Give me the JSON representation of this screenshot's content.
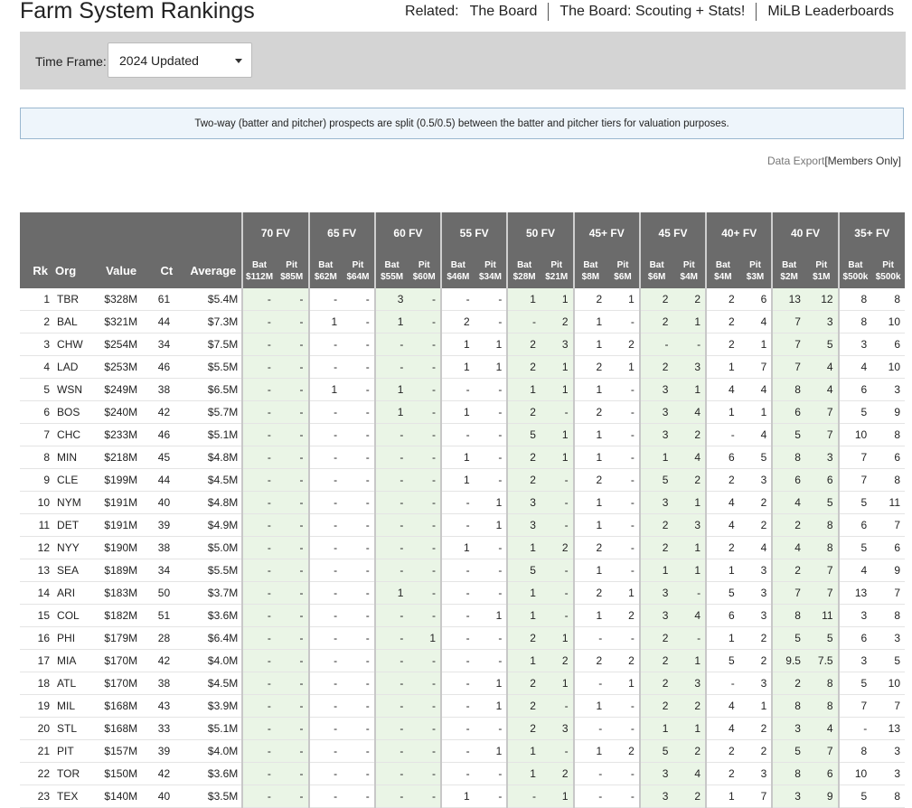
{
  "header": {
    "title": "Farm System Rankings",
    "related_label": "Related:",
    "links": [
      "The Board",
      "The Board: Scouting + Stats!",
      "MiLB Leaderboards"
    ]
  },
  "timeframe": {
    "label": "Time Frame:",
    "selected": "2024 Updated"
  },
  "notice": "Two-way (batter and pitcher) prospects are split (0.5/0.5) between the batter and pitcher tiers for valuation purposes.",
  "export": {
    "prefix": "Data Export",
    "link": "[Members Only]"
  },
  "colors": {
    "header_bg": "#6b6b6b",
    "green_band": "#eaf5e6",
    "bar_bg": "#d4d4d4",
    "notice_bg": "#eef5fb"
  },
  "table": {
    "headers": {
      "rk": "Rk",
      "org": "Org",
      "value": "Value",
      "ct": "Ct",
      "avg": "Average"
    },
    "tiers": [
      {
        "name": "70 FV",
        "bat": "$112M",
        "pit": "$85M",
        "green": true
      },
      {
        "name": "65 FV",
        "bat": "$62M",
        "pit": "$64M",
        "green": false
      },
      {
        "name": "60 FV",
        "bat": "$55M",
        "pit": "$60M",
        "green": true
      },
      {
        "name": "55 FV",
        "bat": "$46M",
        "pit": "$34M",
        "green": false
      },
      {
        "name": "50 FV",
        "bat": "$28M",
        "pit": "$21M",
        "green": true
      },
      {
        "name": "45+ FV",
        "bat": "$8M",
        "pit": "$6M",
        "green": false
      },
      {
        "name": "45 FV",
        "bat": "$6M",
        "pit": "$4M",
        "green": true
      },
      {
        "name": "40+ FV",
        "bat": "$4M",
        "pit": "$3M",
        "green": false
      },
      {
        "name": "40 FV",
        "bat": "$2M",
        "pit": "$1M",
        "green": true
      },
      {
        "name": "35+ FV",
        "bat": "$500k",
        "pit": "$500k",
        "green": false
      }
    ],
    "bat_label": "Bat",
    "pit_label": "Pit",
    "rows": [
      {
        "rk": "1",
        "org": "TBR",
        "value": "$328M",
        "ct": "61",
        "avg": "$5.4M",
        "tiers": [
          "-",
          "-",
          "-",
          "-",
          "3",
          "-",
          "-",
          "-",
          "1",
          "1",
          "2",
          "1",
          "2",
          "2",
          "2",
          "6",
          "13",
          "12",
          "8",
          "8"
        ]
      },
      {
        "rk": "2",
        "org": "BAL",
        "value": "$321M",
        "ct": "44",
        "avg": "$7.3M",
        "tiers": [
          "-",
          "-",
          "1",
          "-",
          "1",
          "-",
          "2",
          "-",
          "-",
          "2",
          "1",
          "-",
          "2",
          "1",
          "2",
          "4",
          "7",
          "3",
          "8",
          "10"
        ]
      },
      {
        "rk": "3",
        "org": "CHW",
        "value": "$254M",
        "ct": "34",
        "avg": "$7.5M",
        "tiers": [
          "-",
          "-",
          "-",
          "-",
          "-",
          "-",
          "1",
          "1",
          "2",
          "3",
          "1",
          "2",
          "-",
          "-",
          "2",
          "1",
          "7",
          "5",
          "3",
          "6"
        ]
      },
      {
        "rk": "4",
        "org": "LAD",
        "value": "$253M",
        "ct": "46",
        "avg": "$5.5M",
        "tiers": [
          "-",
          "-",
          "-",
          "-",
          "-",
          "-",
          "1",
          "1",
          "2",
          "1",
          "2",
          "1",
          "2",
          "3",
          "1",
          "7",
          "7",
          "4",
          "4",
          "10"
        ]
      },
      {
        "rk": "5",
        "org": "WSN",
        "value": "$249M",
        "ct": "38",
        "avg": "$6.5M",
        "tiers": [
          "-",
          "-",
          "1",
          "-",
          "1",
          "-",
          "-",
          "-",
          "1",
          "1",
          "1",
          "-",
          "3",
          "1",
          "4",
          "4",
          "8",
          "4",
          "6",
          "3"
        ]
      },
      {
        "rk": "6",
        "org": "BOS",
        "value": "$240M",
        "ct": "42",
        "avg": "$5.7M",
        "tiers": [
          "-",
          "-",
          "-",
          "-",
          "1",
          "-",
          "1",
          "-",
          "2",
          "-",
          "2",
          "-",
          "3",
          "4",
          "1",
          "1",
          "6",
          "7",
          "5",
          "9"
        ]
      },
      {
        "rk": "7",
        "org": "CHC",
        "value": "$233M",
        "ct": "46",
        "avg": "$5.1M",
        "tiers": [
          "-",
          "-",
          "-",
          "-",
          "-",
          "-",
          "-",
          "-",
          "5",
          "1",
          "1",
          "-",
          "3",
          "2",
          "-",
          "4",
          "5",
          "7",
          "10",
          "8"
        ]
      },
      {
        "rk": "8",
        "org": "MIN",
        "value": "$218M",
        "ct": "45",
        "avg": "$4.8M",
        "tiers": [
          "-",
          "-",
          "-",
          "-",
          "-",
          "-",
          "1",
          "-",
          "2",
          "1",
          "1",
          "-",
          "1",
          "4",
          "6",
          "5",
          "8",
          "3",
          "7",
          "6"
        ]
      },
      {
        "rk": "9",
        "org": "CLE",
        "value": "$199M",
        "ct": "44",
        "avg": "$4.5M",
        "tiers": [
          "-",
          "-",
          "-",
          "-",
          "-",
          "-",
          "1",
          "-",
          "2",
          "-",
          "2",
          "-",
          "5",
          "2",
          "2",
          "3",
          "6",
          "6",
          "7",
          "8"
        ]
      },
      {
        "rk": "10",
        "org": "NYM",
        "value": "$191M",
        "ct": "40",
        "avg": "$4.8M",
        "tiers": [
          "-",
          "-",
          "-",
          "-",
          "-",
          "-",
          "-",
          "1",
          "3",
          "-",
          "1",
          "-",
          "3",
          "1",
          "4",
          "2",
          "4",
          "5",
          "5",
          "11"
        ]
      },
      {
        "rk": "11",
        "org": "DET",
        "value": "$191M",
        "ct": "39",
        "avg": "$4.9M",
        "tiers": [
          "-",
          "-",
          "-",
          "-",
          "-",
          "-",
          "-",
          "1",
          "3",
          "-",
          "1",
          "-",
          "2",
          "3",
          "4",
          "2",
          "2",
          "8",
          "6",
          "7"
        ]
      },
      {
        "rk": "12",
        "org": "NYY",
        "value": "$190M",
        "ct": "38",
        "avg": "$5.0M",
        "tiers": [
          "-",
          "-",
          "-",
          "-",
          "-",
          "-",
          "1",
          "-",
          "1",
          "2",
          "2",
          "-",
          "2",
          "1",
          "2",
          "4",
          "4",
          "8",
          "5",
          "6"
        ]
      },
      {
        "rk": "13",
        "org": "SEA",
        "value": "$189M",
        "ct": "34",
        "avg": "$5.5M",
        "tiers": [
          "-",
          "-",
          "-",
          "-",
          "-",
          "-",
          "-",
          "-",
          "5",
          "-",
          "1",
          "-",
          "1",
          "1",
          "1",
          "3",
          "2",
          "7",
          "4",
          "9"
        ]
      },
      {
        "rk": "14",
        "org": "ARI",
        "value": "$183M",
        "ct": "50",
        "avg": "$3.7M",
        "tiers": [
          "-",
          "-",
          "-",
          "-",
          "1",
          "-",
          "-",
          "-",
          "1",
          "-",
          "2",
          "1",
          "3",
          "-",
          "5",
          "3",
          "7",
          "7",
          "13",
          "7"
        ]
      },
      {
        "rk": "15",
        "org": "COL",
        "value": "$182M",
        "ct": "51",
        "avg": "$3.6M",
        "tiers": [
          "-",
          "-",
          "-",
          "-",
          "-",
          "-",
          "-",
          "1",
          "1",
          "-",
          "1",
          "2",
          "3",
          "4",
          "6",
          "3",
          "8",
          "11",
          "3",
          "8"
        ]
      },
      {
        "rk": "16",
        "org": "PHI",
        "value": "$179M",
        "ct": "28",
        "avg": "$6.4M",
        "tiers": [
          "-",
          "-",
          "-",
          "-",
          "-",
          "1",
          "-",
          "-",
          "2",
          "1",
          "-",
          "-",
          "2",
          "-",
          "1",
          "2",
          "5",
          "5",
          "6",
          "3"
        ]
      },
      {
        "rk": "17",
        "org": "MIA",
        "value": "$170M",
        "ct": "42",
        "avg": "$4.0M",
        "tiers": [
          "-",
          "-",
          "-",
          "-",
          "-",
          "-",
          "-",
          "-",
          "1",
          "2",
          "2",
          "2",
          "2",
          "1",
          "5",
          "2",
          "9.5",
          "7.5",
          "3",
          "5"
        ]
      },
      {
        "rk": "18",
        "org": "ATL",
        "value": "$170M",
        "ct": "38",
        "avg": "$4.5M",
        "tiers": [
          "-",
          "-",
          "-",
          "-",
          "-",
          "-",
          "-",
          "1",
          "2",
          "1",
          "-",
          "1",
          "2",
          "3",
          "-",
          "3",
          "2",
          "8",
          "5",
          "10"
        ]
      },
      {
        "rk": "19",
        "org": "MIL",
        "value": "$168M",
        "ct": "43",
        "avg": "$3.9M",
        "tiers": [
          "-",
          "-",
          "-",
          "-",
          "-",
          "-",
          "-",
          "1",
          "2",
          "-",
          "1",
          "-",
          "2",
          "2",
          "4",
          "1",
          "8",
          "8",
          "7",
          "7"
        ]
      },
      {
        "rk": "20",
        "org": "STL",
        "value": "$168M",
        "ct": "33",
        "avg": "$5.1M",
        "tiers": [
          "-",
          "-",
          "-",
          "-",
          "-",
          "-",
          "-",
          "-",
          "2",
          "3",
          "-",
          "-",
          "1",
          "1",
          "4",
          "2",
          "3",
          "4",
          "-",
          "13"
        ]
      },
      {
        "rk": "21",
        "org": "PIT",
        "value": "$157M",
        "ct": "39",
        "avg": "$4.0M",
        "tiers": [
          "-",
          "-",
          "-",
          "-",
          "-",
          "-",
          "-",
          "1",
          "1",
          "-",
          "1",
          "2",
          "5",
          "2",
          "2",
          "2",
          "5",
          "7",
          "8",
          "3"
        ]
      },
      {
        "rk": "22",
        "org": "TOR",
        "value": "$150M",
        "ct": "42",
        "avg": "$3.6M",
        "tiers": [
          "-",
          "-",
          "-",
          "-",
          "-",
          "-",
          "-",
          "-",
          "1",
          "2",
          "-",
          "-",
          "3",
          "4",
          "2",
          "3",
          "8",
          "6",
          "10",
          "3"
        ]
      },
      {
        "rk": "23",
        "org": "TEX",
        "value": "$140M",
        "ct": "40",
        "avg": "$3.5M",
        "tiers": [
          "-",
          "-",
          "-",
          "-",
          "-",
          "-",
          "1",
          "-",
          "-",
          "1",
          "-",
          "-",
          "3",
          "2",
          "1",
          "7",
          "3",
          "9",
          "5",
          "8"
        ]
      }
    ]
  }
}
